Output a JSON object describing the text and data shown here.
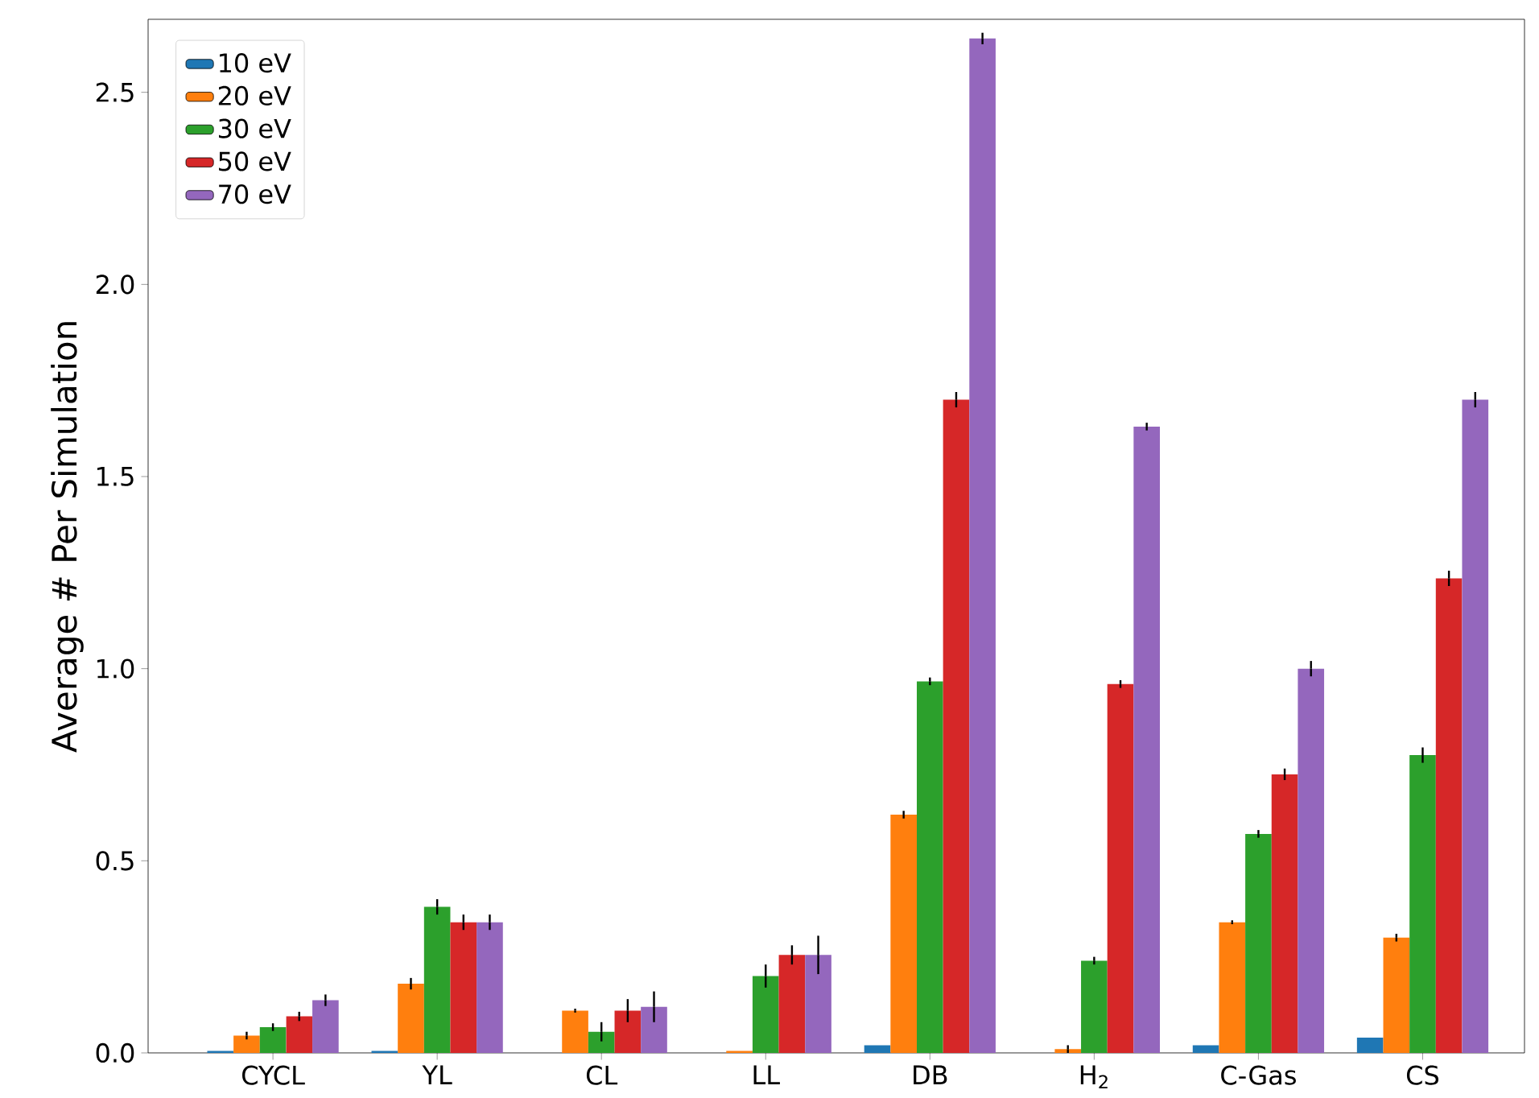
{
  "chart_data": {
    "type": "bar",
    "ylabel": "Average # Per Simulation",
    "categories": [
      "CYCL",
      "YL",
      "CL",
      "LL",
      "DB",
      "H$_{2}$",
      "C-Gas",
      "CS"
    ],
    "series": [
      {
        "name": "10 eV",
        "color": "#1f77b4",
        "values": [
          0.005,
          0.005,
          0,
          0,
          0.02,
          0,
          0.02,
          0.04
        ],
        "errors": [
          null,
          null,
          null,
          null,
          null,
          null,
          null,
          null
        ]
      },
      {
        "name": "20 eV",
        "color": "#ff7f0e",
        "values": [
          0.045,
          0.18,
          0.11,
          0.005,
          0.62,
          0.01,
          0.34,
          0.3
        ],
        "errors": [
          0.01,
          0.015,
          0.005,
          null,
          0.01,
          0.01,
          0.005,
          0.01
        ]
      },
      {
        "name": "30 eV",
        "color": "#2ca02c",
        "values": [
          0.067,
          0.38,
          0.055,
          0.2,
          0.967,
          0.24,
          0.57,
          0.775
        ],
        "errors": [
          0.01,
          0.02,
          0.025,
          0.03,
          0.01,
          0.01,
          0.01,
          0.02
        ]
      },
      {
        "name": "50 eV",
        "color": "#d62728",
        "values": [
          0.095,
          0.34,
          0.11,
          0.255,
          1.7,
          0.96,
          0.725,
          1.235
        ],
        "errors": [
          0.012,
          0.02,
          0.03,
          0.025,
          0.02,
          0.01,
          0.015,
          0.02
        ]
      },
      {
        "name": "70 eV",
        "color": "#9467bd",
        "values": [
          0.137,
          0.34,
          0.12,
          0.255,
          2.64,
          1.63,
          1.0,
          1.7
        ],
        "errors": [
          0.015,
          0.02,
          0.04,
          0.05,
          0.015,
          0.01,
          0.02,
          0.02
        ]
      }
    ],
    "ylim": [
      0,
      2.69
    ],
    "yticks": [
      {
        "value": 0,
        "label": "0.0"
      },
      0.5,
      {
        "value": 1,
        "label": "1.0"
      },
      1.5,
      {
        "value": 2,
        "label": "2.0"
      },
      2.5
    ],
    "legend": "top left"
  }
}
